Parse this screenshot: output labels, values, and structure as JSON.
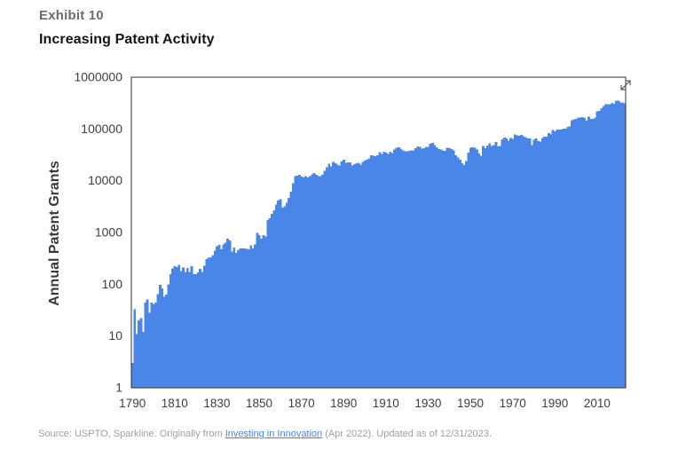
{
  "exhibit_label": "Exhibit 10",
  "title": "Increasing Patent Activity",
  "footer": {
    "prefix": "Source: USPTO, Sparkline. Originally from ",
    "link_text": "Investing in Innovation",
    "suffix": " (Apr 2022). Updated as of 12/31/2023."
  },
  "icons": {
    "expand_icon": "⤢"
  },
  "colors": {
    "bar": "#4a85e8",
    "frame": "#2f2f2f",
    "tick_text": "#3d3d3d",
    "axis_title_text": "#3a3a3a",
    "exhibit_label": "#6d6d6d",
    "title": "#141414",
    "footer_text": "#9e9e9e",
    "link": "#4a7fe8",
    "icon": "#5f6368"
  },
  "chart_data": {
    "type": "bar",
    "title": "Increasing Patent Activity",
    "xlabel": "",
    "ylabel": "Annual Patent Grants",
    "y_scale": "log",
    "ylim": [
      1,
      1000000
    ],
    "y_ticks": [
      1000000,
      100000,
      10000,
      1000,
      100,
      10,
      1
    ],
    "x_ticks": [
      1790,
      1810,
      1830,
      1850,
      1870,
      1890,
      1910,
      1930,
      1950,
      1970,
      1990,
      2010
    ],
    "x_start_year": 1790,
    "x_end_year": 2023,
    "grid": false,
    "legend": false,
    "series": [
      {
        "name": "Annual Patent Grants",
        "values": [
          3,
          33,
          11,
          20,
          22,
          12,
          44,
          51,
          28,
          44,
          41,
          44,
          65,
          97,
          84,
          57,
          63,
          99,
          158,
          203,
          223,
          215,
          238,
          181,
          210,
          173,
          206,
          174,
          222,
          156,
          155,
          168,
          200,
          173,
          228,
          304,
          323,
          331,
          368,
          447,
          544,
          573,
          474,
          586,
          630,
          752,
          702,
          426,
          514,
          404,
          458,
          490,
          488,
          493,
          478,
          473,
          566,
          495,
          583,
          984,
          883,
          752,
          885,
          844,
          1755,
          1881,
          2302,
          2674,
          3455,
          4160,
          4357,
          3020,
          3214,
          3773,
          4630,
          6088,
          8863,
          12277,
          12526,
          12931,
          12137,
          11659,
          12180,
          11616,
          12230,
          13291,
          14169,
          12920,
          12345,
          12165,
          12902,
          15500,
          18091,
          21162,
          19118,
          23285,
          21767,
          20403,
          19551,
          23324,
          25313,
          22312,
          22647,
          22750,
          19855,
          20856,
          21822,
          22067,
          20377,
          23278,
          24644,
          25546,
          27119,
          31029,
          30258,
          29775,
          31170,
          35859,
          32735,
          36561,
          35141,
          32856,
          36198,
          33917,
          39892,
          43118,
          43892,
          40935,
          38452,
          36797,
          37060,
          37798,
          38369,
          38616,
          42574,
          46432,
          44733,
          41717,
          42357,
          45267,
          45226,
          51756,
          53458,
          48774,
          44420,
          40618,
          39782,
          37683,
          38061,
          43073,
          42238,
          41109,
          38449,
          31054,
          28053,
          25695,
          21803,
          20191,
          23963,
          35131,
          43040,
          44326,
          43616,
          40468,
          33809,
          30432,
          46817,
          42744,
          48330,
          52408,
          47170,
          48368,
          55691,
          45679,
          47376,
          62857,
          68406,
          65652,
          59104,
          67559,
          64429,
          78317,
          74810,
          74143,
          76278,
          71994,
          70226,
          65269,
          66102,
          48854,
          61819,
          65771,
          57888,
          56860,
          67200,
          71661,
          70860,
          82952,
          77924,
          95537,
          90365,
          96511,
          97444,
          98342,
          101676,
          101419,
          109645,
          111983,
          147519,
          153485,
          157494,
          166035,
          167331,
          169023,
          164290,
          143806,
          173772,
          157282,
          157772,
          167349,
          219614,
          224505,
          253155,
          277835,
          300678,
          298407,
          303049,
          318829,
          307759,
          354430,
          351993,
          327307,
          323410,
          312100
        ]
      }
    ]
  }
}
